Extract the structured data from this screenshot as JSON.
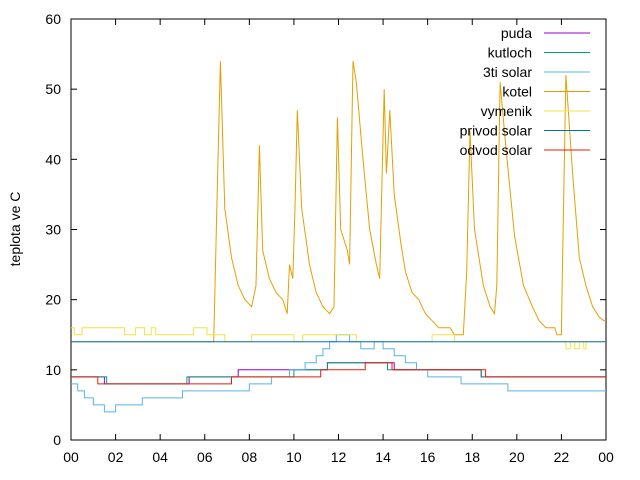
{
  "chart_data": {
    "type": "line",
    "title": "",
    "xlabel": "",
    "ylabel": "teplota ve C",
    "xlim": [
      0,
      24
    ],
    "ylim": [
      0,
      60
    ],
    "x_ticks": [
      "00",
      "02",
      "04",
      "06",
      "08",
      "10",
      "12",
      "14",
      "16",
      "18",
      "20",
      "22",
      "00"
    ],
    "y_ticks": [
      "0",
      "10",
      "20",
      "30",
      "40",
      "50",
      "60"
    ],
    "grid": false,
    "legend_position": "top-right",
    "series": [
      {
        "name": "puda",
        "color": "#9400d3",
        "step": true,
        "points": [
          [
            0,
            9
          ],
          [
            1.2,
            9
          ],
          [
            1.5,
            8
          ],
          [
            5.2,
            8
          ],
          [
            5.3,
            9
          ],
          [
            7.2,
            9
          ],
          [
            7.5,
            10
          ],
          [
            10,
            10
          ],
          [
            10.2,
            10
          ],
          [
            11,
            10
          ],
          [
            11.5,
            11
          ],
          [
            14.2,
            11
          ],
          [
            14.5,
            10
          ],
          [
            16.5,
            10
          ],
          [
            16.7,
            10
          ],
          [
            18,
            10
          ],
          [
            18.4,
            9
          ],
          [
            24,
            9
          ]
        ]
      },
      {
        "name": "kutloch",
        "color": "#009e73",
        "step": true,
        "points": [
          [
            0,
            9
          ],
          [
            1.4,
            9
          ],
          [
            1.6,
            8
          ],
          [
            5,
            8
          ],
          [
            5.2,
            9
          ],
          [
            7.5,
            9
          ],
          [
            7.7,
            9
          ],
          [
            9.8,
            9
          ],
          [
            10,
            10
          ],
          [
            11.2,
            10
          ],
          [
            11.5,
            11
          ],
          [
            14,
            11
          ],
          [
            14.2,
            10
          ],
          [
            16.5,
            10
          ],
          [
            17,
            10
          ],
          [
            18.2,
            10
          ],
          [
            18.4,
            9
          ],
          [
            24,
            9
          ]
        ]
      },
      {
        "name": "3ti solar",
        "color": "#56b4e9",
        "step": true,
        "points": [
          [
            0,
            8
          ],
          [
            0.3,
            7
          ],
          [
            0.6,
            6
          ],
          [
            1.0,
            5
          ],
          [
            1.5,
            4
          ],
          [
            2,
            5
          ],
          [
            2.5,
            5
          ],
          [
            3.2,
            6
          ],
          [
            5,
            7
          ],
          [
            7,
            7
          ],
          [
            8,
            8
          ],
          [
            8.8,
            8
          ],
          [
            9,
            9
          ],
          [
            9.8,
            10
          ],
          [
            10.5,
            11
          ],
          [
            11,
            12
          ],
          [
            11.3,
            13
          ],
          [
            11.6,
            14
          ],
          [
            11.9,
            15
          ],
          [
            12.5,
            14
          ],
          [
            13,
            13
          ],
          [
            13.3,
            13
          ],
          [
            13.6,
            14
          ],
          [
            14,
            13
          ],
          [
            14.5,
            12
          ],
          [
            15,
            11
          ],
          [
            15.5,
            10
          ],
          [
            16,
            9
          ],
          [
            17,
            9
          ],
          [
            17.5,
            8
          ],
          [
            19.4,
            8
          ],
          [
            19.6,
            7
          ],
          [
            24,
            7
          ]
        ]
      },
      {
        "name": "kotel",
        "color": "#e69f00",
        "step": false,
        "points": [
          [
            0,
            14
          ],
          [
            6.4,
            14
          ],
          [
            6.55,
            34
          ],
          [
            6.7,
            54
          ],
          [
            6.9,
            33
          ],
          [
            7.2,
            26
          ],
          [
            7.5,
            22
          ],
          [
            7.8,
            20
          ],
          [
            8.1,
            19
          ],
          [
            8.3,
            22
          ],
          [
            8.45,
            42
          ],
          [
            8.6,
            27
          ],
          [
            8.9,
            23
          ],
          [
            9.2,
            21
          ],
          [
            9.5,
            20
          ],
          [
            9.7,
            18
          ],
          [
            9.8,
            25
          ],
          [
            9.95,
            23
          ],
          [
            10.05,
            33
          ],
          [
            10.15,
            47
          ],
          [
            10.35,
            33
          ],
          [
            10.7,
            25
          ],
          [
            11.0,
            21
          ],
          [
            11.3,
            19
          ],
          [
            11.6,
            18
          ],
          [
            11.8,
            19
          ],
          [
            11.95,
            46
          ],
          [
            12.1,
            30
          ],
          [
            12.4,
            27
          ],
          [
            12.5,
            25
          ],
          [
            12.65,
            54
          ],
          [
            12.8,
            51
          ],
          [
            13.1,
            40
          ],
          [
            13.4,
            30
          ],
          [
            13.7,
            25
          ],
          [
            13.85,
            23
          ],
          [
            13.95,
            37
          ],
          [
            14.05,
            50
          ],
          [
            14.15,
            38
          ],
          [
            14.3,
            47
          ],
          [
            14.5,
            35
          ],
          [
            14.8,
            28
          ],
          [
            15.0,
            24
          ],
          [
            15.3,
            21
          ],
          [
            15.6,
            20
          ],
          [
            15.9,
            18
          ],
          [
            16.2,
            17
          ],
          [
            16.5,
            16
          ],
          [
            17.0,
            16
          ],
          [
            17.2,
            15
          ],
          [
            17.6,
            15
          ],
          [
            17.75,
            24
          ],
          [
            17.9,
            44
          ],
          [
            18.1,
            30
          ],
          [
            18.5,
            22
          ],
          [
            18.8,
            19
          ],
          [
            19.0,
            18
          ],
          [
            19.1,
            22
          ],
          [
            19.25,
            51
          ],
          [
            19.5,
            42
          ],
          [
            19.9,
            29
          ],
          [
            20.3,
            22
          ],
          [
            20.7,
            19
          ],
          [
            21.0,
            17
          ],
          [
            21.3,
            16
          ],
          [
            21.7,
            16
          ],
          [
            21.8,
            15
          ],
          [
            22.0,
            15
          ],
          [
            22.05,
            25
          ],
          [
            22.2,
            52
          ],
          [
            22.5,
            38
          ],
          [
            22.8,
            26
          ],
          [
            23.1,
            22
          ],
          [
            23.4,
            19
          ],
          [
            23.7,
            17.5
          ],
          [
            23.9,
            17
          ],
          [
            24,
            17
          ]
        ]
      },
      {
        "name": "vymenik",
        "color": "#f0e442",
        "step": true,
        "points": [
          [
            0,
            16
          ],
          [
            0.15,
            15
          ],
          [
            0.5,
            16
          ],
          [
            2.2,
            16
          ],
          [
            2.4,
            15
          ],
          [
            2.7,
            15
          ],
          [
            2.9,
            16
          ],
          [
            3.2,
            16
          ],
          [
            3.3,
            15
          ],
          [
            3.5,
            15
          ],
          [
            3.6,
            16
          ],
          [
            3.8,
            15
          ],
          [
            5.4,
            15
          ],
          [
            5.5,
            16
          ],
          [
            6.0,
            16
          ],
          [
            6.1,
            15
          ],
          [
            6.8,
            15
          ],
          [
            6.9,
            14
          ],
          [
            8,
            14
          ],
          [
            8.1,
            15
          ],
          [
            9.9,
            15
          ],
          [
            10.0,
            14
          ],
          [
            10.3,
            14
          ],
          [
            10.4,
            15
          ],
          [
            12.7,
            15
          ],
          [
            12.8,
            14
          ],
          [
            16.1,
            14
          ],
          [
            16.2,
            15
          ],
          [
            17.1,
            15
          ],
          [
            17.2,
            14
          ],
          [
            22.1,
            14
          ],
          [
            22.2,
            13
          ],
          [
            22.4,
            14
          ],
          [
            22.6,
            13
          ],
          [
            22.8,
            14
          ],
          [
            23.0,
            13
          ],
          [
            23.1,
            14
          ],
          [
            24,
            14
          ]
        ]
      },
      {
        "name": "privod solar",
        "color": "#0072b2",
        "step": true,
        "points": [
          [
            0,
            14
          ],
          [
            24,
            14
          ]
        ]
      },
      {
        "name": "odvod solar",
        "color": "#e51e10",
        "step": true,
        "points": [
          [
            0,
            9
          ],
          [
            1.0,
            9
          ],
          [
            1.2,
            8
          ],
          [
            5.5,
            8
          ],
          [
            5.6,
            8
          ],
          [
            7.0,
            8
          ],
          [
            7.2,
            9
          ],
          [
            11.0,
            9
          ],
          [
            11.2,
            10
          ],
          [
            13.0,
            10
          ],
          [
            13.2,
            11
          ],
          [
            14.2,
            11
          ],
          [
            14.4,
            10
          ],
          [
            18.5,
            10
          ],
          [
            18.6,
            9
          ],
          [
            24,
            9
          ]
        ]
      }
    ]
  }
}
